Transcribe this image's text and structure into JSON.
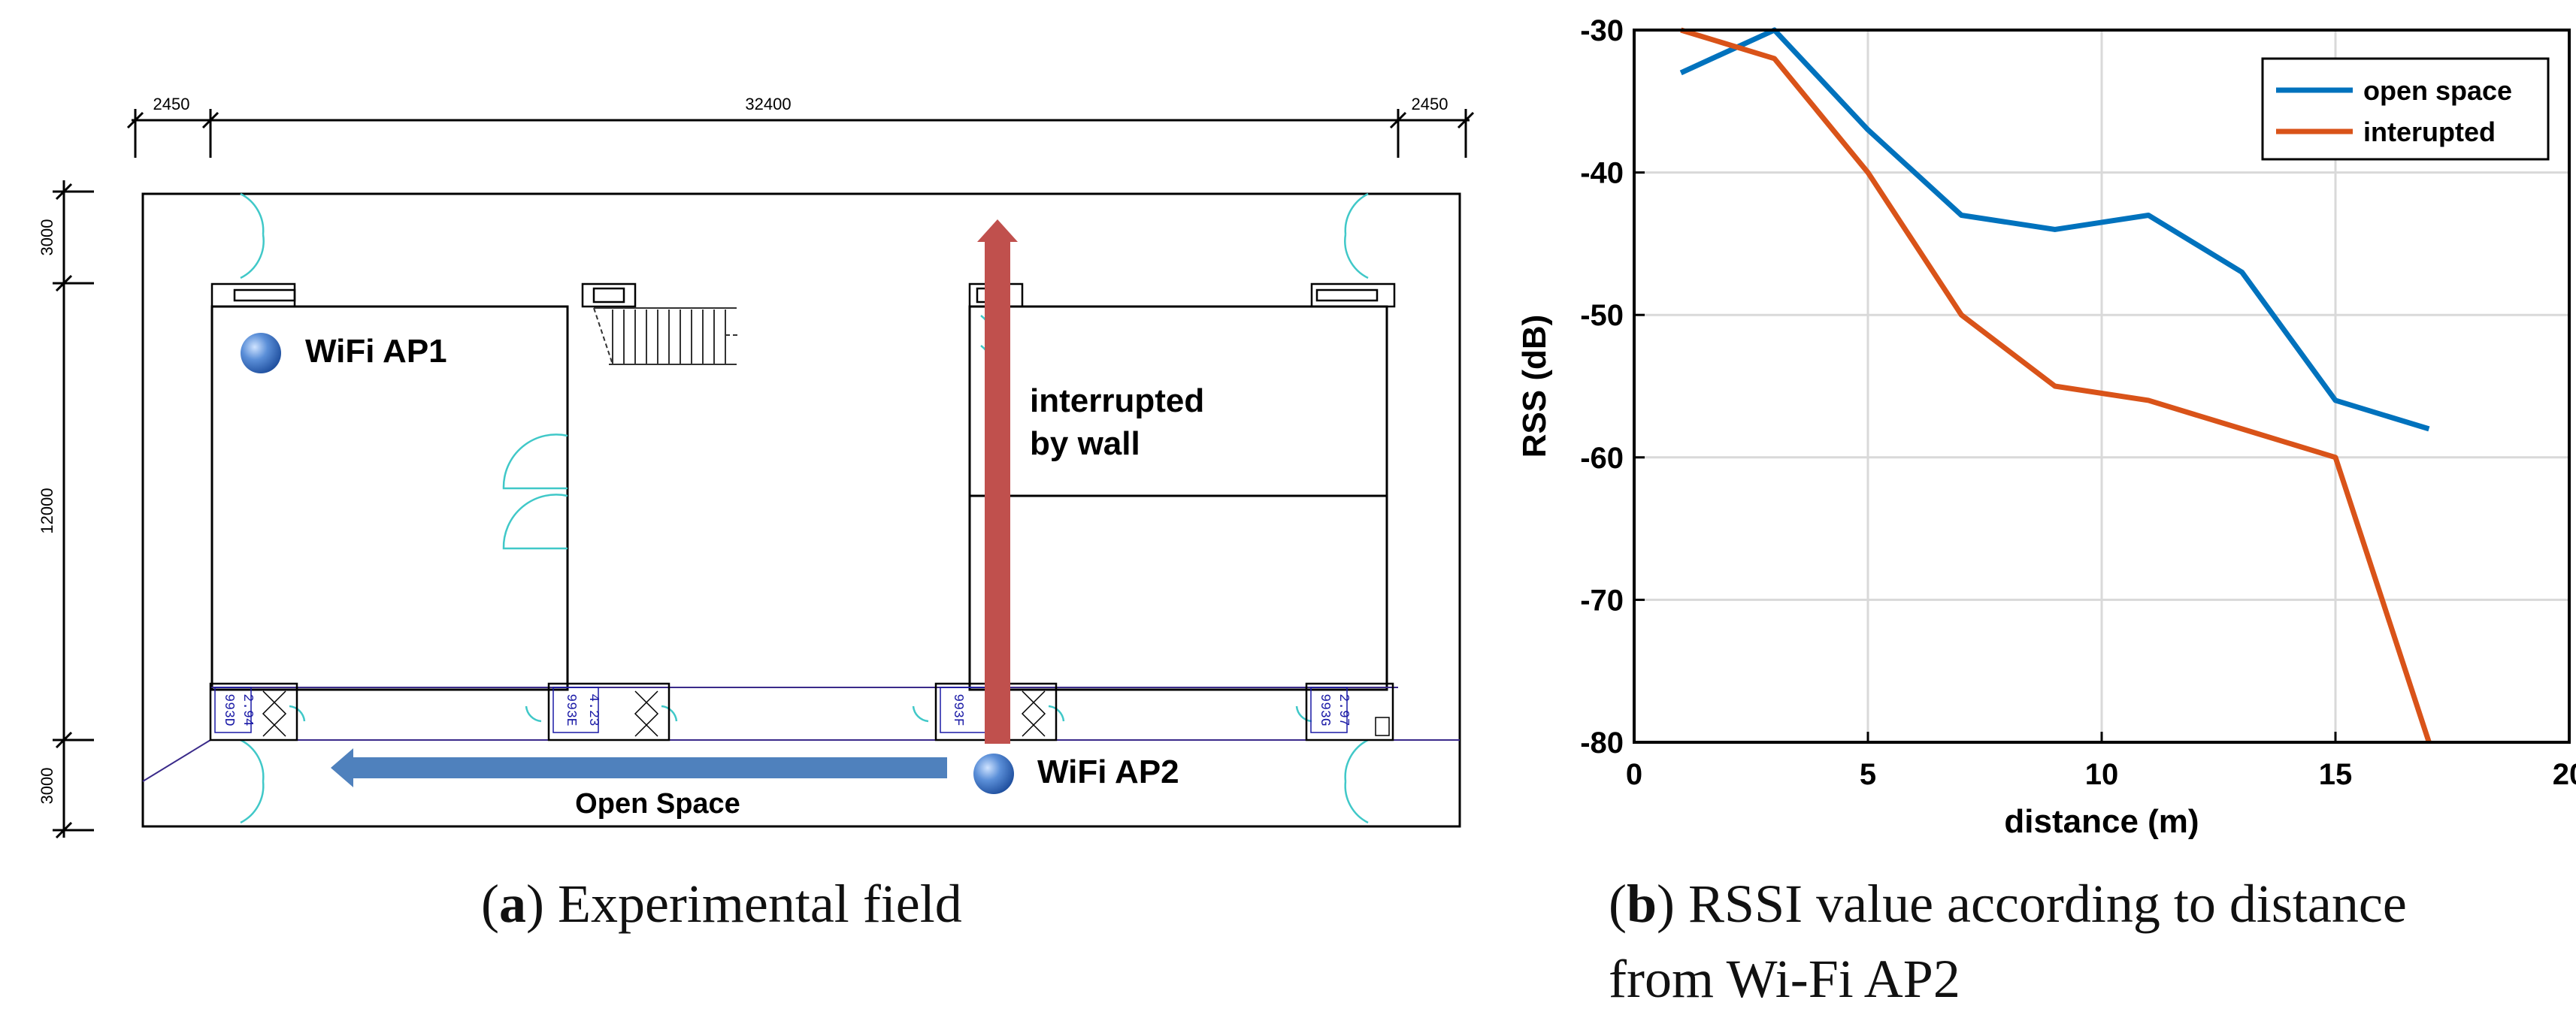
{
  "floor_plan": {
    "dimensions": {
      "left_top": "2450",
      "middle_top": "32400",
      "right_top": "2450",
      "left_top_v": "3000",
      "left_mid_v": "12000",
      "left_bot_v": "3000"
    },
    "ap1_label": "WiFi AP1",
    "ap2_label": "WiFi AP2",
    "wall_label_line1": "interrupted",
    "wall_label_line2": "by wall",
    "open_space_label": "Open Space",
    "room_tags": [
      "993D",
      "993E",
      "993F",
      "993G"
    ],
    "room_sizes": [
      "2.94",
      "4.23",
      "",
      "2.97"
    ],
    "colors": {
      "arrow_red": "#c0504d",
      "arrow_blue": "#4f81bd",
      "door": "#40c8c8",
      "tag": "#1a1aa6"
    }
  },
  "captions": {
    "a_letter": "a",
    "a_text": "Experimental field",
    "b_letter": "b",
    "b_text_line1": "RSSI value according to distance",
    "b_text_line2": "from Wi-Fi AP2"
  },
  "chart_data": {
    "type": "line",
    "title": "",
    "xlabel": "distance (m)",
    "ylabel": "RSS (dB)",
    "xlim": [
      0,
      20
    ],
    "ylim": [
      -80,
      -30
    ],
    "xticks": [
      0,
      5,
      10,
      15,
      20
    ],
    "yticks": [
      -30,
      -40,
      -50,
      -60,
      -70,
      -80
    ],
    "grid": true,
    "legend_position": "top-right",
    "series": [
      {
        "name": "open space",
        "color": "#0072bd",
        "x": [
          1,
          3,
          5,
          7,
          9,
          11,
          13,
          15,
          17
        ],
        "y": [
          -33,
          -30,
          -37,
          -43,
          -44,
          -43,
          -47,
          -56,
          -58
        ]
      },
      {
        "name": "interupted",
        "color": "#d95319",
        "x": [
          1,
          3,
          5,
          7,
          9,
          11,
          13,
          15,
          17
        ],
        "y": [
          -30,
          -32,
          -40,
          -50,
          -55,
          -56,
          -58,
          -60,
          -80
        ]
      }
    ]
  }
}
